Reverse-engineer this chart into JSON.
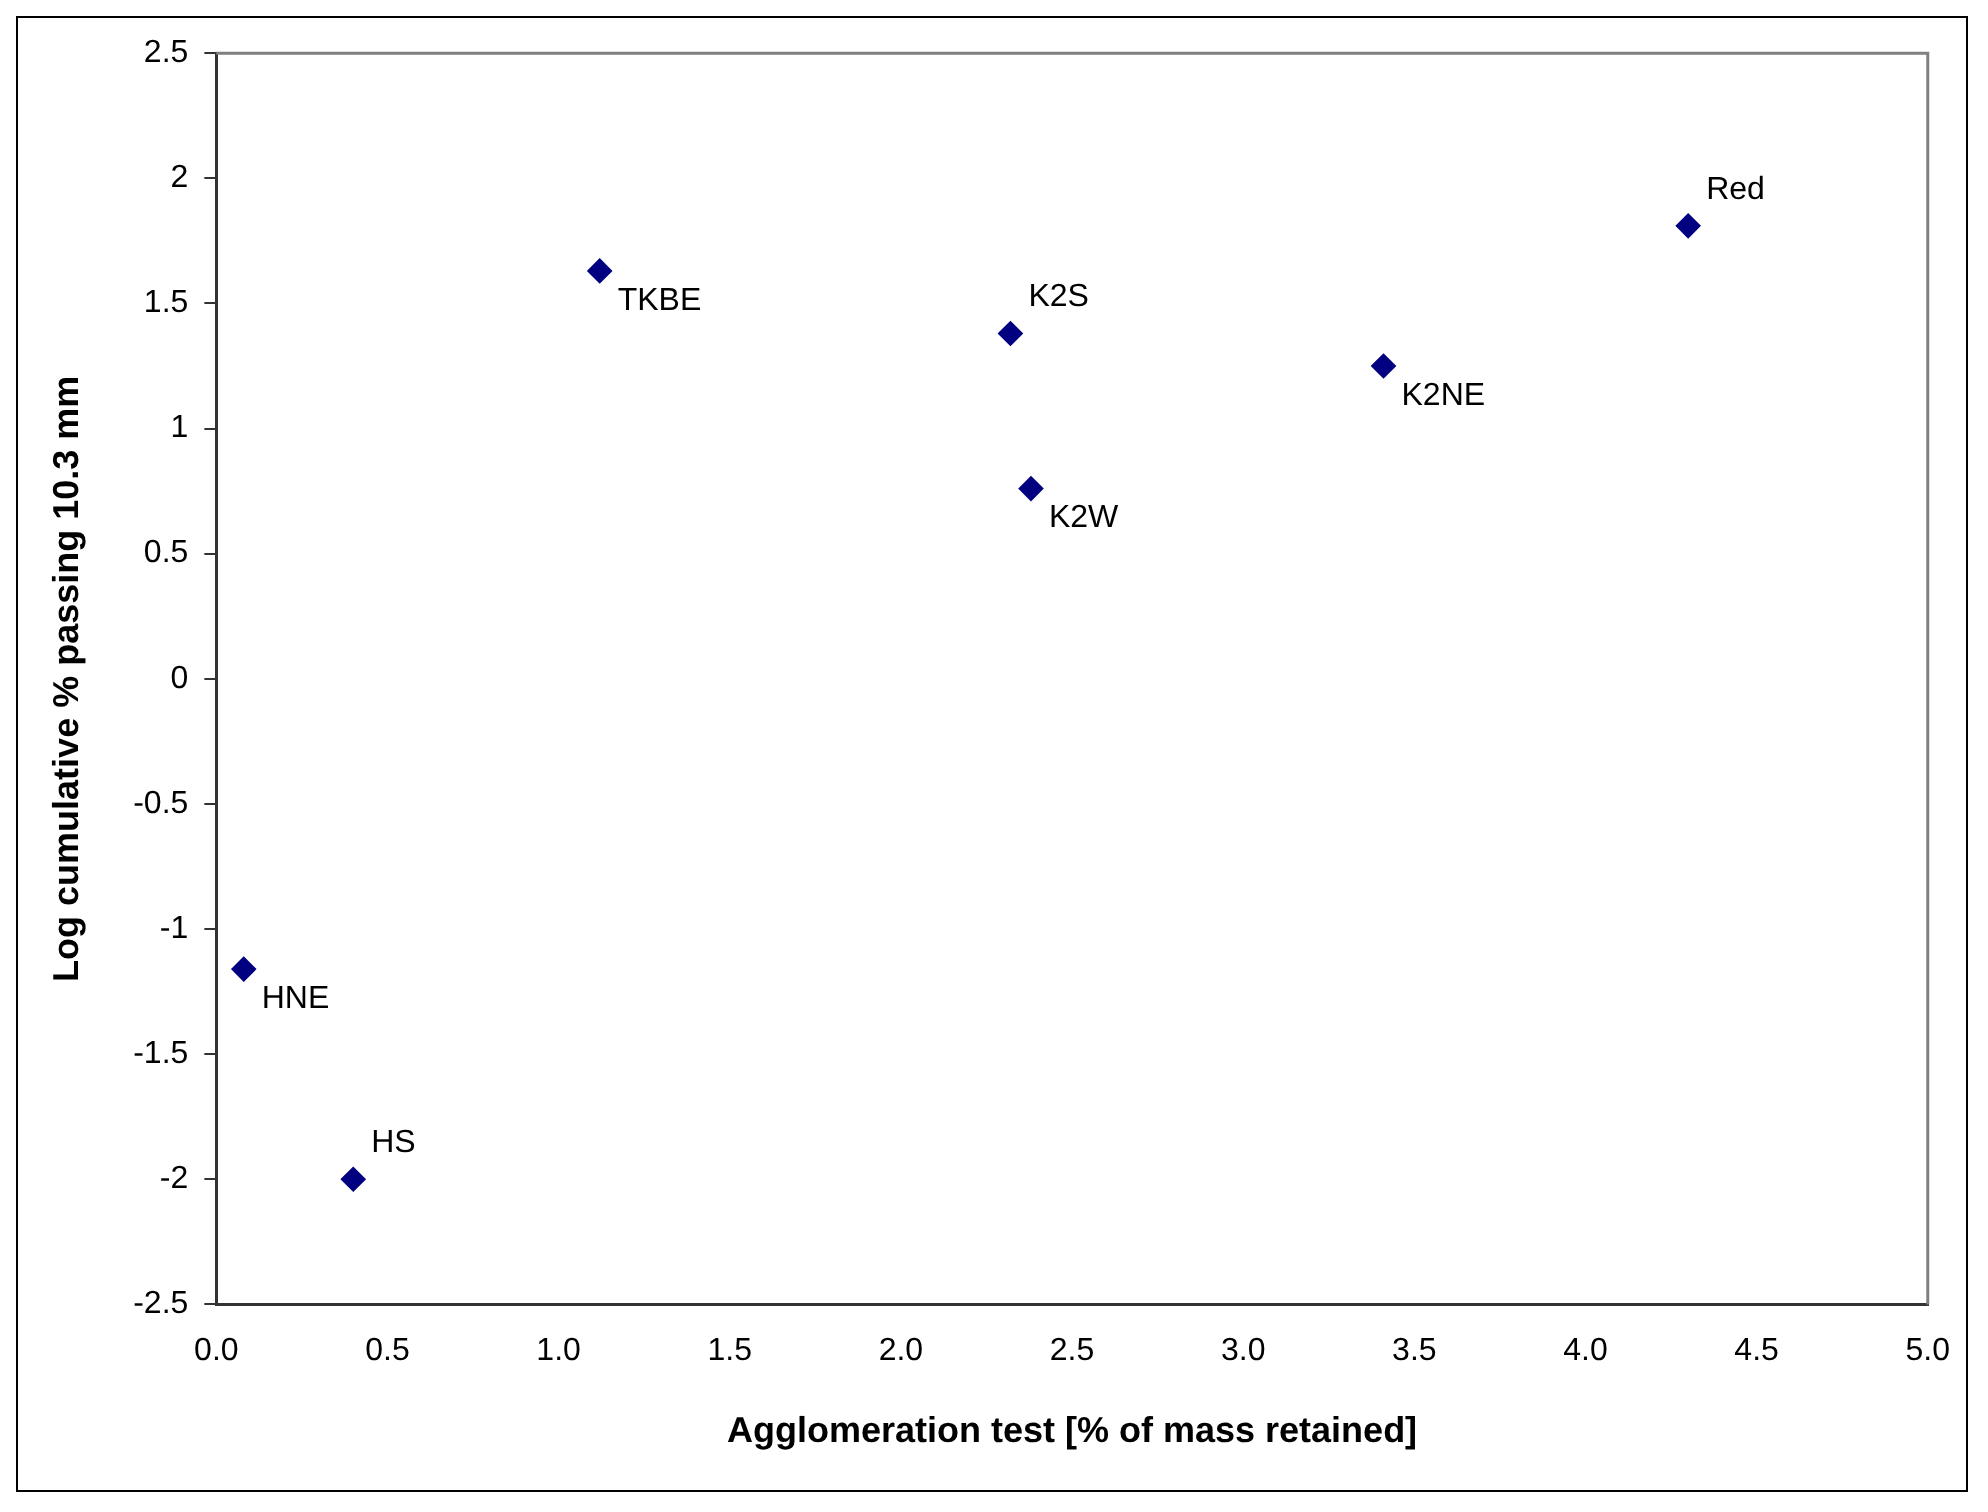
{
  "chart_data": {
    "type": "scatter",
    "xlabel": "Agglomeration test [% of mass retained]",
    "ylabel": "Log cumulative % passing 10.3 mm",
    "series": [
      {
        "color": "#000080",
        "x": [
          1.12,
          2.32,
          2.38,
          3.41,
          4.3,
          0.08,
          0.4
        ],
        "values": [
          1.63,
          1.38,
          0.76,
          1.25,
          1.81,
          -1.16,
          -2.0
        ]
      }
    ],
    "annotations": [
      {
        "text": "TKBE",
        "x": 1.12,
        "y": 1.63
      },
      {
        "text": "K2S",
        "x": 2.32,
        "y": 1.38
      },
      {
        "text": "K2W",
        "x": 2.38,
        "y": 0.76
      },
      {
        "text": "K2NE",
        "x": 3.41,
        "y": 1.25
      },
      {
        "text": "Red",
        "x": 4.3,
        "y": 1.81
      },
      {
        "text": "HNE",
        "x": 0.08,
        "y": -1.16
      },
      {
        "text": "HS",
        "x": 0.4,
        "y": -2.0
      }
    ],
    "xlim": [
      0,
      5
    ],
    "ylim": [
      -2.5,
      2.5
    ],
    "xticks": [
      {
        "value": 0,
        "label": "0.0"
      },
      {
        "value": 0.5,
        "label": "0.5"
      },
      {
        "value": 1,
        "label": "1.0"
      },
      {
        "value": 1.5,
        "label": "1.5"
      },
      {
        "value": 2,
        "label": "2.0"
      },
      {
        "value": 2.5,
        "label": "2.5"
      },
      {
        "value": 3,
        "label": "3.0"
      },
      {
        "value": 3.5,
        "label": "3.5"
      },
      {
        "value": 4,
        "label": "4.0"
      },
      {
        "value": 4.5,
        "label": "4.5"
      },
      {
        "value": 5,
        "label": "5.0"
      }
    ],
    "yticks": [
      -2.5,
      -2,
      -1.5,
      -1,
      -0.5,
      0,
      0.5,
      1,
      1.5,
      2,
      2.5
    ],
    "grid": false,
    "legend": false,
    "marker": "diamond"
  }
}
